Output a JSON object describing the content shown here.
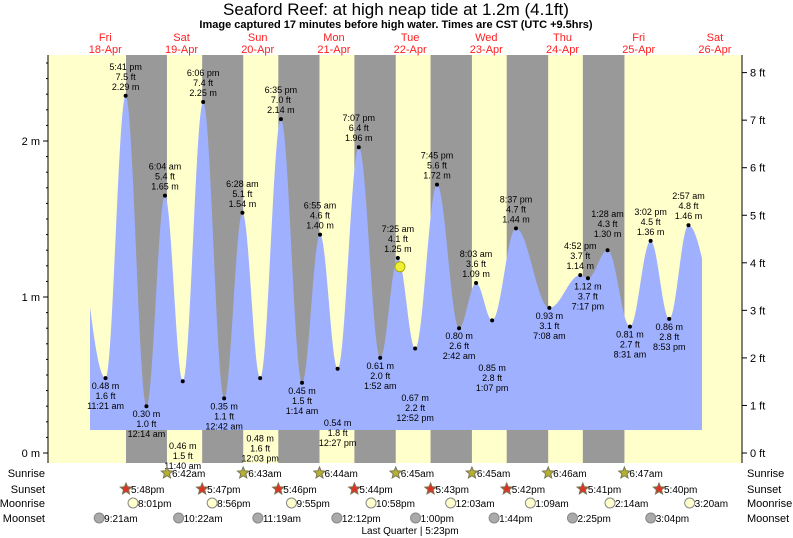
{
  "title": "Seaford Reef: at high  neap tide at 1.2m (4.1ft)",
  "subtitle": "Image captured 17 minutes before high water. Times are CST (UTC +9.5hrs)",
  "colors": {
    "day": "#ffffcc",
    "night": "#999999",
    "tide": "#9fb0ff",
    "day_label": "#ff2020",
    "current_marker": "#eeee33",
    "sunrise_star": "#b8b030",
    "sunset_star": "#dd3322",
    "moonrise": "#ffffcc",
    "moonset": "#aaaaaa"
  },
  "chart_data": {
    "type": "area",
    "title": "Seaford Reef: at high  neap tide at 1.2m (4.1ft)",
    "days": [
      {
        "dow": "Fri",
        "date": "18-Apr"
      },
      {
        "dow": "Sat",
        "date": "19-Apr"
      },
      {
        "dow": "Sun",
        "date": "20-Apr"
      },
      {
        "dow": "Mon",
        "date": "21-Apr"
      },
      {
        "dow": "Tue",
        "date": "22-Apr"
      },
      {
        "dow": "Wed",
        "date": "23-Apr"
      },
      {
        "dow": "Thu",
        "date": "24-Apr"
      },
      {
        "dow": "Fri",
        "date": "25-Apr"
      },
      {
        "dow": "Sat",
        "date": "26-Apr"
      }
    ],
    "y_left": {
      "unit": "m",
      "ticks": [
        "0 m",
        "1 m",
        "2 m"
      ],
      "values": [
        0,
        1,
        2
      ]
    },
    "y_right": {
      "unit": "ft",
      "ticks": [
        "0 ft",
        "1 ft",
        "2 ft",
        "3 ft",
        "4 ft",
        "5 ft",
        "6 ft",
        "7 ft",
        "8 ft"
      ],
      "values": [
        0,
        1,
        2,
        3,
        4,
        5,
        6,
        7,
        8
      ]
    },
    "extremes": [
      {
        "day": 0,
        "time": "11:21 am",
        "m": "0.48 m",
        "ft": "1.6 ft",
        "v": 0.48,
        "type": "low"
      },
      {
        "day": 0,
        "time": "5:41 pm",
        "m": "2.29 m",
        "ft": "7.5 ft",
        "v": 2.29,
        "type": "high"
      },
      {
        "day": 1,
        "time": "12:14 am",
        "m": "0.30 m",
        "ft": "1.0 ft",
        "v": 0.3,
        "type": "low"
      },
      {
        "day": 1,
        "time": "6:04 am",
        "m": "1.65 m",
        "ft": "5.4 ft",
        "v": 1.65,
        "type": "high"
      },
      {
        "day": 1,
        "time": "11:40 am",
        "m": "0.46 m",
        "ft": "1.5 ft",
        "v": 0.46,
        "type": "low"
      },
      {
        "day": 1,
        "time": "6:06 pm",
        "m": "2.25 m",
        "ft": "7.4 ft",
        "v": 2.25,
        "type": "high"
      },
      {
        "day": 2,
        "time": "12:42 am",
        "m": "0.35 m",
        "ft": "1.1 ft",
        "v": 0.35,
        "type": "low"
      },
      {
        "day": 2,
        "time": "6:28 am",
        "m": "1.54 m",
        "ft": "5.1 ft",
        "v": 1.54,
        "type": "high"
      },
      {
        "day": 2,
        "time": "12:03 pm",
        "m": "0.48 m",
        "ft": "1.6 ft",
        "v": 0.48,
        "type": "low"
      },
      {
        "day": 2,
        "time": "6:35 pm",
        "m": "2.14 m",
        "ft": "7.0 ft",
        "v": 2.14,
        "type": "high"
      },
      {
        "day": 3,
        "time": "1:14 am",
        "m": "0.45 m",
        "ft": "1.5 ft",
        "v": 0.45,
        "type": "low"
      },
      {
        "day": 3,
        "time": "6:55 am",
        "m": "1.40 m",
        "ft": "4.6 ft",
        "v": 1.4,
        "type": "high"
      },
      {
        "day": 3,
        "time": "12:27 pm",
        "m": "0.54 m",
        "ft": "1.8 ft",
        "v": 0.54,
        "type": "low"
      },
      {
        "day": 3,
        "time": "7:07 pm",
        "m": "1.96 m",
        "ft": "6.4 ft",
        "v": 1.96,
        "type": "high"
      },
      {
        "day": 4,
        "time": "1:52 am",
        "m": "0.61 m",
        "ft": "2.0 ft",
        "v": 0.61,
        "type": "low"
      },
      {
        "day": 4,
        "time": "7:25 am",
        "m": "1.25 m",
        "ft": "4.1 ft",
        "v": 1.25,
        "type": "high"
      },
      {
        "day": 4,
        "time": "12:52 pm",
        "m": "0.67 m",
        "ft": "2.2 ft",
        "v": 0.67,
        "type": "low"
      },
      {
        "day": 4,
        "time": "7:45 pm",
        "m": "1.72 m",
        "ft": "5.6 ft",
        "v": 1.72,
        "type": "high"
      },
      {
        "day": 5,
        "time": "2:42 am",
        "m": "0.80 m",
        "ft": "2.6 ft",
        "v": 0.8,
        "type": "low"
      },
      {
        "day": 5,
        "time": "8:03 am",
        "m": "1.09 m",
        "ft": "3.6 ft",
        "v": 1.09,
        "type": "high"
      },
      {
        "day": 5,
        "time": "1:07 pm",
        "m": "0.85 m",
        "ft": "2.8 ft",
        "v": 0.85,
        "type": "low"
      },
      {
        "day": 5,
        "time": "8:37 pm",
        "m": "1.44 m",
        "ft": "4.7 ft",
        "v": 1.44,
        "type": "high"
      },
      {
        "day": 6,
        "time": "7:08 am",
        "m": "0.93 m",
        "ft": "3.1 ft",
        "v": 0.93,
        "type": "low"
      },
      {
        "day": 6,
        "time": "4:52 pm",
        "m": "1.14 m",
        "ft": "3.7 ft",
        "v": 1.14,
        "type": "high"
      },
      {
        "day": 6,
        "time": "7:17 pm",
        "m": "1.12 m",
        "ft": "3.7 ft",
        "v": 1.12,
        "type": "low"
      },
      {
        "day": 7,
        "time": "1:28 am",
        "m": "1.30 m",
        "ft": "4.3 ft",
        "v": 1.3,
        "type": "high"
      },
      {
        "day": 7,
        "time": "8:31 am",
        "m": "0.81 m",
        "ft": "2.7 ft",
        "v": 0.81,
        "type": "low"
      },
      {
        "day": 7,
        "time": "3:02 pm",
        "m": "1.36 m",
        "ft": "4.5 ft",
        "v": 1.36,
        "type": "high"
      },
      {
        "day": 7,
        "time": "8:53 pm",
        "m": "0.86 m",
        "ft": "2.8 ft",
        "v": 0.86,
        "type": "low"
      },
      {
        "day": 8,
        "time": "2:57 am",
        "m": "1.46 m",
        "ft": "4.8 ft",
        "v": 1.46,
        "type": "high"
      }
    ],
    "current": {
      "day": 4,
      "time": "7:08 am",
      "v": 1.2
    }
  },
  "rows": {
    "sunrise": {
      "label": "Sunrise",
      "events": [
        {
          "day": 1,
          "time": "6:42am"
        },
        {
          "day": 2,
          "time": "6:43am"
        },
        {
          "day": 3,
          "time": "6:44am"
        },
        {
          "day": 4,
          "time": "6:45am"
        },
        {
          "day": 5,
          "time": "6:45am"
        },
        {
          "day": 6,
          "time": "6:46am"
        },
        {
          "day": 7,
          "time": "6:47am"
        }
      ]
    },
    "sunset": {
      "label": "Sunset",
      "events": [
        {
          "day": 0,
          "time": "5:48pm"
        },
        {
          "day": 1,
          "time": "5:47pm"
        },
        {
          "day": 2,
          "time": "5:46pm"
        },
        {
          "day": 3,
          "time": "5:44pm"
        },
        {
          "day": 4,
          "time": "5:43pm"
        },
        {
          "day": 5,
          "time": "5:42pm"
        },
        {
          "day": 6,
          "time": "5:41pm"
        },
        {
          "day": 7,
          "time": "5:40pm"
        }
      ]
    },
    "moonrise": {
      "label": "Moonrise",
      "events": [
        {
          "day": 0,
          "time": "8:01pm"
        },
        {
          "day": 1,
          "time": "8:56pm"
        },
        {
          "day": 2,
          "time": "9:55pm"
        },
        {
          "day": 3,
          "time": "10:58pm"
        },
        {
          "day": 5,
          "time": "12:03am"
        },
        {
          "day": 6,
          "time": "1:09am"
        },
        {
          "day": 7,
          "time": "2:14am"
        },
        {
          "day": 8,
          "time": "3:20am"
        }
      ]
    },
    "moonset": {
      "label": "Moonset",
      "events": [
        {
          "day": 0,
          "time": "9:21am"
        },
        {
          "day": 1,
          "time": "10:22am"
        },
        {
          "day": 2,
          "time": "11:19am"
        },
        {
          "day": 3,
          "time": "12:12pm"
        },
        {
          "day": 4,
          "time": "1:00pm"
        },
        {
          "day": 5,
          "time": "1:44pm"
        },
        {
          "day": 6,
          "time": "2:25pm"
        },
        {
          "day": 7,
          "time": "3:04pm"
        }
      ]
    }
  },
  "moon_phase": {
    "text": "Last Quarter | 5:23pm",
    "day": 4,
    "time": "5:23pm"
  }
}
